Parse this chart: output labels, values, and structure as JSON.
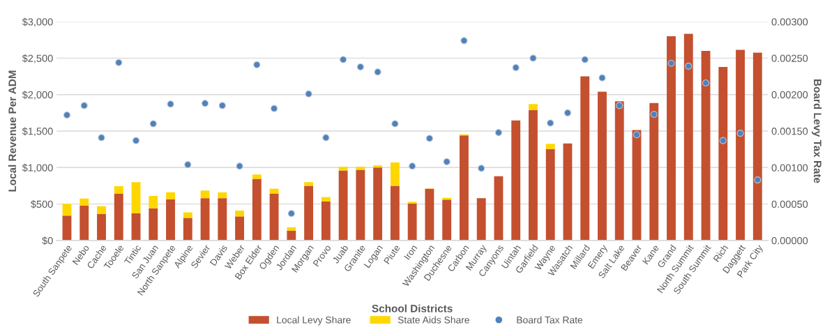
{
  "chart_data": {
    "type": "bar",
    "stacked": true,
    "xlabel": "School Districts",
    "ylabel": "Local Revenue Per ADM",
    "y2label": "Board Levy Tax Rate",
    "categories": [
      "South Sanpete",
      "Nebo",
      "Cache",
      "Tooele",
      "Tintic",
      "San Juan",
      "North Sanpete",
      "Alpine",
      "Sevier",
      "Davis",
      "Weber",
      "Box Elder",
      "Ogden",
      "Jordan",
      "Morgan",
      "Provo",
      "Juab",
      "Granite",
      "Logan",
      "Piute",
      "Iron",
      "Washington",
      "Duchesne",
      "Carbon",
      "Murray",
      "Canyons",
      "Uintah",
      "Garfield",
      "Wayne",
      "Wasatch",
      "Millard",
      "Emery",
      "Salt Lake",
      "Beaver",
      "Kane",
      "Grand",
      "North Summit",
      "South Summit",
      "Rich",
      "Daggett",
      "Park City"
    ],
    "series": [
      {
        "name": "Local Levy Share",
        "color": "#c4502f",
        "values": [
          340,
          480,
          365,
          645,
          375,
          440,
          565,
          310,
          580,
          580,
          330,
          845,
          645,
          135,
          750,
          535,
          960,
          970,
          1000,
          750,
          505,
          710,
          560,
          1440,
          580,
          880,
          1645,
          1790,
          1255,
          1330,
          2250,
          2040,
          1910,
          1515,
          1885,
          2800,
          2835,
          2600,
          2380,
          2615,
          2575
        ]
      },
      {
        "name": "State Aids Share",
        "color": "#ffd700",
        "values": [
          160,
          95,
          105,
          100,
          425,
          170,
          95,
          75,
          105,
          80,
          80,
          60,
          65,
          45,
          50,
          60,
          50,
          40,
          30,
          320,
          25,
          5,
          25,
          15,
          0,
          0,
          0,
          80,
          70,
          0,
          0,
          0,
          0,
          0,
          0,
          0,
          0,
          0,
          0,
          0,
          0
        ]
      },
      {
        "name": "Board Tax Rate",
        "type": "scatter",
        "axis": "y2",
        "marker": "circle",
        "color": "#4f81bd",
        "values": [
          0.00172,
          0.00185,
          0.00141,
          0.00244,
          0.00137,
          0.0016,
          0.00187,
          0.00104,
          0.00188,
          0.00185,
          0.00102,
          0.00241,
          0.00181,
          0.00037,
          0.00201,
          0.00141,
          0.00248,
          0.00238,
          0.00231,
          0.0016,
          0.00102,
          0.0014,
          0.00108,
          0.00274,
          0.00099,
          0.00148,
          0.00237,
          0.0025,
          0.00161,
          0.00175,
          0.00248,
          0.00223,
          0.00185,
          0.00145,
          0.00173,
          0.00243,
          0.00239,
          0.00216,
          0.00137,
          0.00147,
          0.00083
        ]
      }
    ],
    "ylim": [
      0,
      3000
    ],
    "yticks": [
      {
        "value": 0,
        "label": "$0"
      },
      {
        "value": 500,
        "label": "$500"
      },
      {
        "value": 1000,
        "label": "$1,000"
      },
      {
        "value": 1500,
        "label": "$1,500"
      },
      {
        "value": 2000,
        "label": "$2,000"
      },
      {
        "value": 2500,
        "label": "$2,500"
      },
      {
        "value": 3000,
        "label": "$3,000"
      }
    ],
    "y2lim": [
      0,
      0.003
    ],
    "y2ticks": [
      {
        "value": 0,
        "label": "0.00000"
      },
      {
        "value": 0.0005,
        "label": "0.00050"
      },
      {
        "value": 0.001,
        "label": "0.00100"
      },
      {
        "value": 0.0015,
        "label": "0.00150"
      },
      {
        "value": 0.002,
        "label": "0.00200"
      },
      {
        "value": 0.0025,
        "label": "0.00250"
      },
      {
        "value": 0.003,
        "label": "0.00300"
      }
    ],
    "grid": "y",
    "legend": "bottom"
  }
}
